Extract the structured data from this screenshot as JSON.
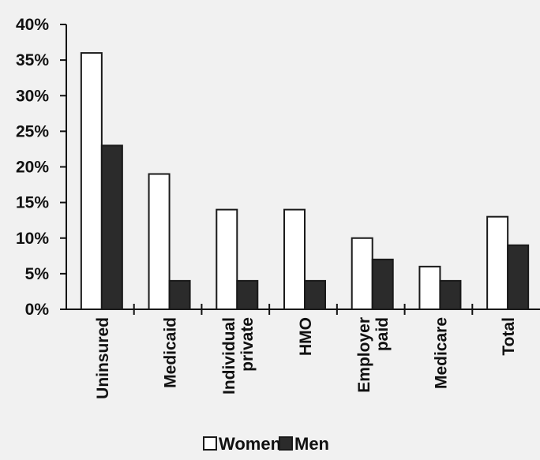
{
  "chart_data": {
    "type": "bar",
    "categories": [
      [
        "Uninsured"
      ],
      [
        "Medicaid"
      ],
      [
        "Individual",
        "private"
      ],
      [
        "HMO"
      ],
      [
        "Employer",
        "paid"
      ],
      [
        "Medicare"
      ],
      [
        "Total"
      ]
    ],
    "series": [
      {
        "name": "Women",
        "values": [
          36,
          19,
          14,
          14,
          10,
          6,
          13
        ],
        "color": "#ffffff"
      },
      {
        "name": "Men",
        "values": [
          23,
          4,
          4,
          4,
          7,
          4,
          9
        ],
        "color": "#2b2b2b"
      }
    ],
    "y_ticks": [
      "0%",
      "5%",
      "10%",
      "15%",
      "20%",
      "25%",
      "30%",
      "35%",
      "40%"
    ],
    "ylim": [
      0,
      40
    ],
    "grid": false,
    "legend_position": "bottom-center"
  }
}
